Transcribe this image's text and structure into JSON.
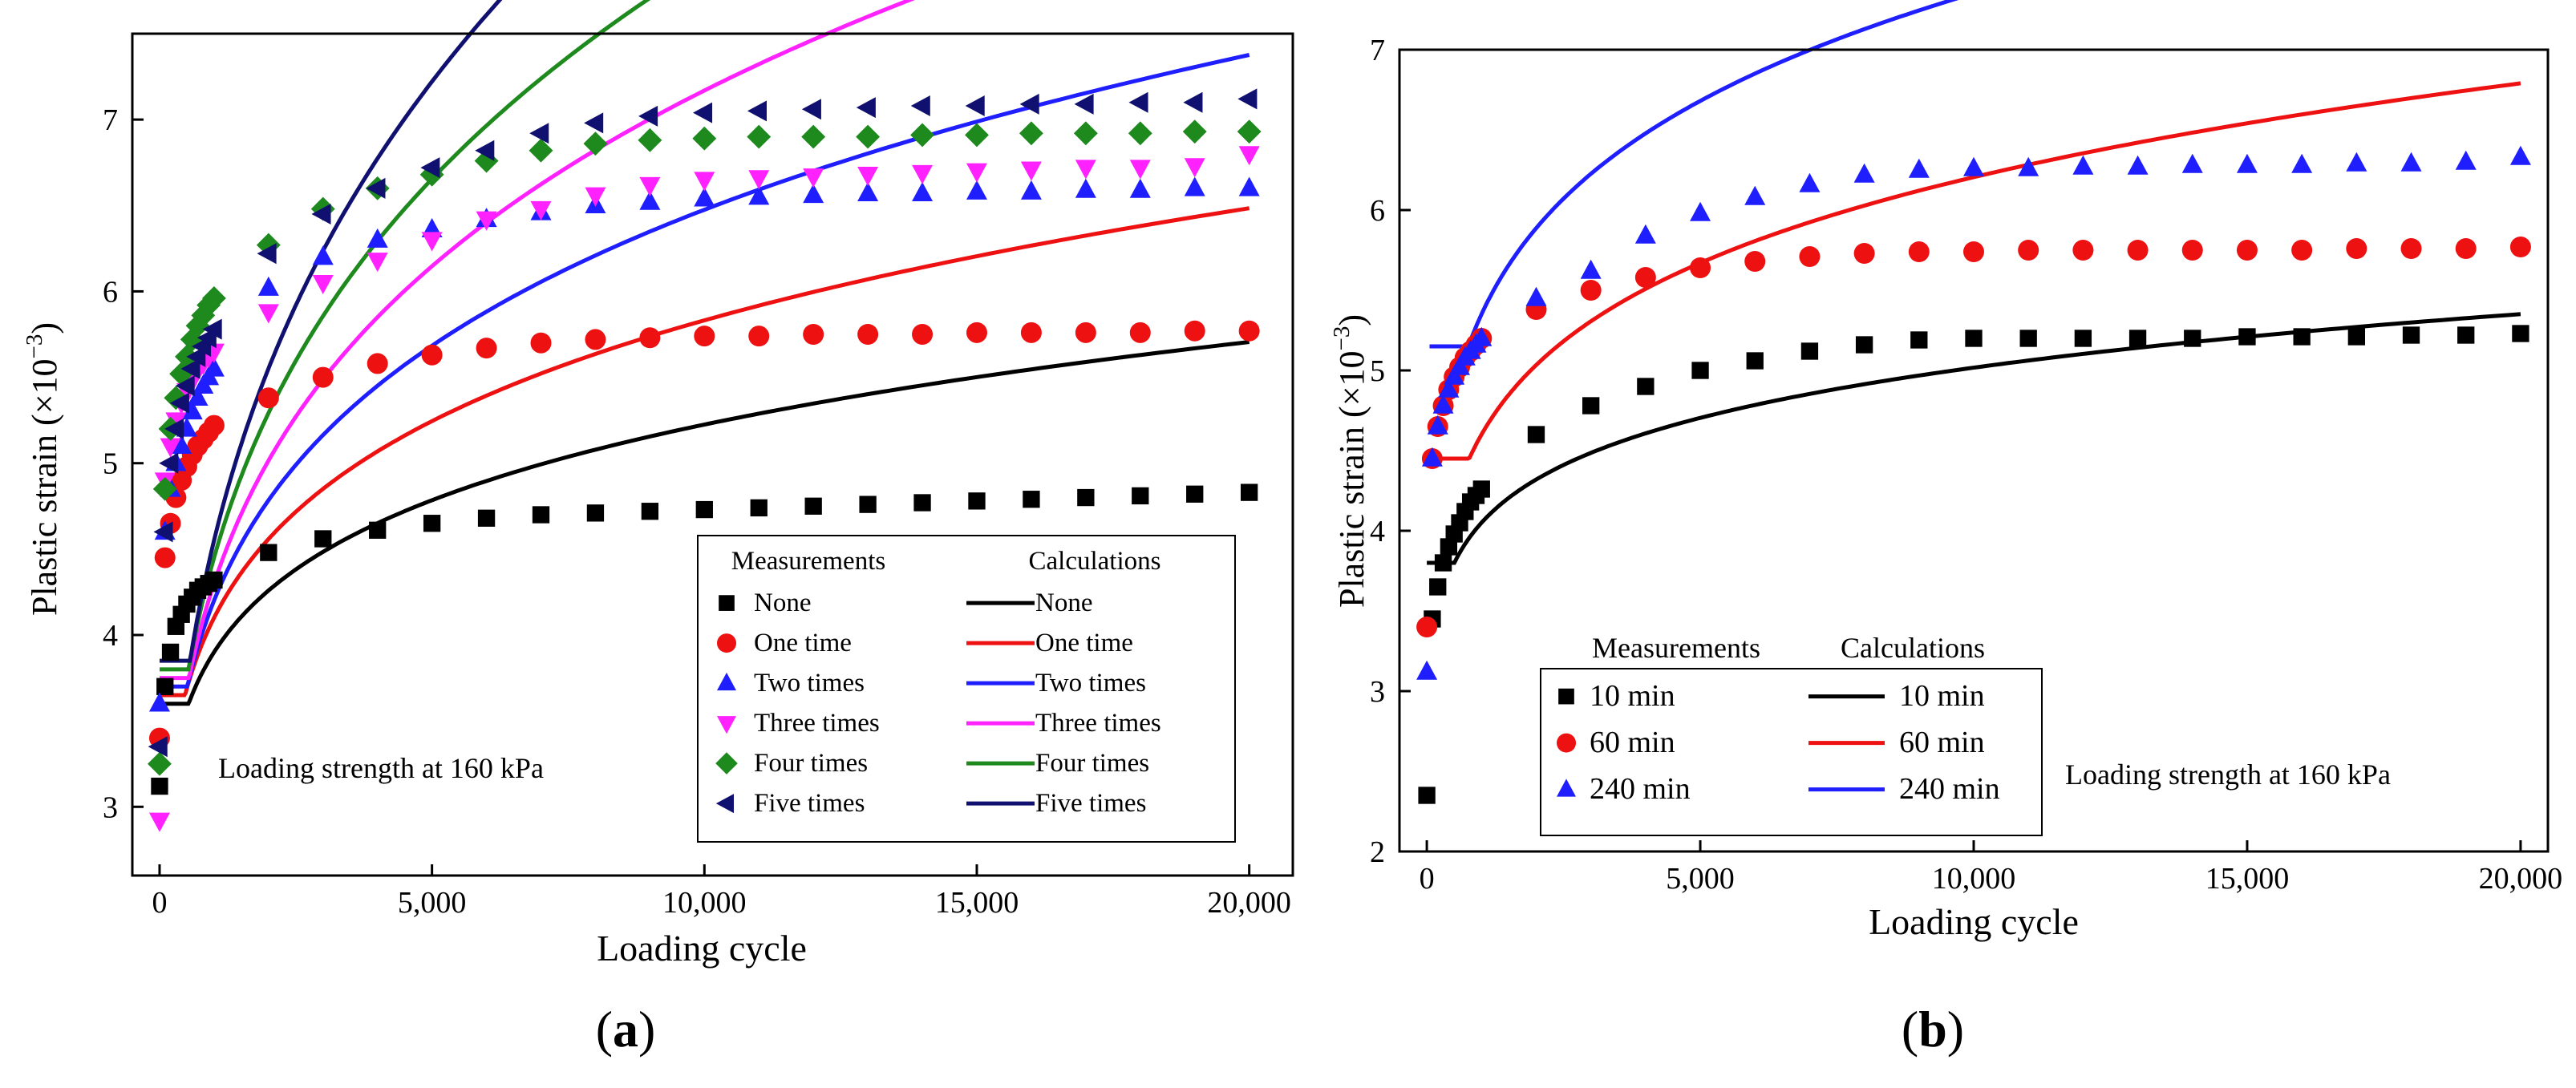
{
  "chart_data": [
    {
      "panel_label": "a",
      "type": "scatter",
      "xlabel": "Loading cycle",
      "ylabel": "Plastic strain (×10",
      "ylabel_exp": "−3",
      "ylabel_close": ")",
      "xlim": [
        -500,
        20800
      ],
      "ylim": [
        2.6,
        7.5
      ],
      "xticks": [
        0,
        5000,
        10000,
        15000,
        20000
      ],
      "xtick_labels": [
        "0",
        "5,000",
        "10,000",
        "15,000",
        "20,000"
      ],
      "yticks": [
        3,
        4,
        5,
        6,
        7
      ],
      "ytick_labels": [
        "3",
        "4",
        "5",
        "6",
        "7"
      ],
      "annotation": "Loading strength at 160 kPa",
      "legend": {
        "placement": "bottom-right",
        "measurements_header": "Measurements",
        "calculations_header": "Calculations"
      },
      "x": [
        0,
        100,
        200,
        300,
        400,
        500,
        600,
        700,
        800,
        900,
        1000,
        2000,
        3000,
        4000,
        5000,
        6000,
        7000,
        8000,
        9000,
        10000,
        11000,
        12000,
        13000,
        14000,
        15000,
        16000,
        17000,
        18000,
        19000,
        20000
      ],
      "series": [
        {
          "name": "None",
          "color": "#000000",
          "marker": "square",
          "measured": [
            3.12,
            3.7,
            3.9,
            4.05,
            4.12,
            4.18,
            4.22,
            4.26,
            4.28,
            4.3,
            4.32,
            4.48,
            4.56,
            4.61,
            4.65,
            4.68,
            4.7,
            4.71,
            4.72,
            4.73,
            4.74,
            4.75,
            4.76,
            4.77,
            4.78,
            4.79,
            4.8,
            4.81,
            4.82,
            4.83
          ],
          "calculated": {
            "start": [
              0,
              3.6
            ],
            "a": 3.9,
            "b": 0.127
          }
        },
        {
          "name": "One time",
          "color": "#ee1111",
          "marker": "circle",
          "measured": [
            3.4,
            4.45,
            4.65,
            4.8,
            4.9,
            4.98,
            5.05,
            5.1,
            5.14,
            5.18,
            5.22,
            5.38,
            5.5,
            5.58,
            5.63,
            5.67,
            5.7,
            5.72,
            5.73,
            5.74,
            5.74,
            5.75,
            5.75,
            5.75,
            5.76,
            5.76,
            5.76,
            5.76,
            5.77,
            5.77
          ],
          "calculated": {
            "start": [
              0,
              3.65
            ],
            "a": 4.1,
            "b": 0.153
          }
        },
        {
          "name": "Two times",
          "color": "#1e1eff",
          "marker": "triangle-up",
          "measured": [
            3.6,
            4.6,
            4.85,
            5.0,
            5.1,
            5.2,
            5.3,
            5.38,
            5.45,
            5.5,
            5.55,
            6.02,
            6.2,
            6.3,
            6.36,
            6.42,
            6.46,
            6.5,
            6.52,
            6.54,
            6.55,
            6.56,
            6.57,
            6.57,
            6.58,
            6.58,
            6.59,
            6.59,
            6.6,
            6.6
          ],
          "calculated": {
            "start": [
              0,
              3.7
            ],
            "a": 4.2,
            "b": 0.188
          }
        },
        {
          "name": "Three times",
          "color": "#ff22ff",
          "marker": "triangle-down",
          "measured": [
            2.92,
            4.9,
            5.1,
            5.25,
            5.35,
            5.42,
            5.48,
            5.54,
            5.58,
            5.62,
            5.65,
            5.88,
            6.05,
            6.18,
            6.3,
            6.42,
            6.48,
            6.56,
            6.62,
            6.65,
            6.66,
            6.67,
            6.68,
            6.69,
            6.7,
            6.71,
            6.72,
            6.72,
            6.73,
            6.8
          ],
          "calculated": {
            "start": [
              0,
              3.75
            ],
            "a": 4.3,
            "b": 0.222
          }
        },
        {
          "name": "Four times",
          "color": "#1e8a1e",
          "marker": "diamond",
          "measured": [
            3.25,
            4.85,
            5.2,
            5.38,
            5.52,
            5.62,
            5.72,
            5.8,
            5.86,
            5.92,
            5.96,
            6.27,
            6.48,
            6.6,
            6.68,
            6.76,
            6.82,
            6.86,
            6.88,
            6.89,
            6.9,
            6.9,
            6.9,
            6.91,
            6.91,
            6.92,
            6.92,
            6.92,
            6.93,
            6.93
          ],
          "calculated": {
            "start": [
              0,
              3.8
            ],
            "a": 4.45,
            "b": 0.25
          }
        },
        {
          "name": "Five times",
          "color": "#101070",
          "marker": "triangle-left",
          "measured": [
            3.35,
            4.6,
            5.0,
            5.2,
            5.35,
            5.45,
            5.55,
            5.62,
            5.68,
            5.73,
            5.78,
            6.22,
            6.45,
            6.6,
            6.72,
            6.82,
            6.92,
            6.98,
            7.02,
            7.04,
            7.05,
            7.06,
            7.07,
            7.08,
            7.08,
            7.09,
            7.09,
            7.1,
            7.1,
            7.12
          ],
          "calculated": {
            "start": [
              0,
              3.85
            ],
            "a": 4.55,
            "b": 0.287
          }
        }
      ]
    },
    {
      "panel_label": "b",
      "type": "scatter",
      "xlabel": "Loading cycle",
      "ylabel": "Plastic strain (×10",
      "ylabel_exp": "−3",
      "ylabel_close": ")",
      "xlim": [
        -500,
        20500
      ],
      "ylim": [
        2,
        7
      ],
      "xticks": [
        0,
        5000,
        10000,
        15000,
        20000
      ],
      "xtick_labels": [
        "0",
        "5,000",
        "10,000",
        "15,000",
        "20,000"
      ],
      "yticks": [
        2,
        3,
        4,
        5,
        6,
        7
      ],
      "ytick_labels": [
        "2",
        "3",
        "4",
        "5",
        "6",
        "7"
      ],
      "annotation": "Loading strength at 160 kPa",
      "legend": {
        "placement": "bottom-left",
        "measurements_header": "Measurements",
        "calculations_header": "Calculations"
      },
      "x": [
        0,
        100,
        200,
        300,
        400,
        500,
        600,
        700,
        800,
        900,
        1000,
        2000,
        3000,
        4000,
        5000,
        6000,
        7000,
        8000,
        9000,
        10000,
        11000,
        12000,
        13000,
        14000,
        15000,
        16000,
        17000,
        18000,
        19000,
        20000
      ],
      "series": [
        {
          "name": "10 min",
          "color": "#000000",
          "marker": "square",
          "measured": [
            2.35,
            3.45,
            3.65,
            3.8,
            3.9,
            3.98,
            4.05,
            4.12,
            4.18,
            4.22,
            4.26,
            4.6,
            4.78,
            4.9,
            5.0,
            5.06,
            5.12,
            5.16,
            5.19,
            5.2,
            5.2,
            5.2,
            5.2,
            5.2,
            5.21,
            5.21,
            5.21,
            5.22,
            5.22,
            5.23
          ],
          "calculated": {
            "start": [
              0,
              3.8
            ],
            "a": 4.05,
            "b": 0.093
          }
        },
        {
          "name": "60 min",
          "color": "#ee1111",
          "marker": "circle",
          "measured": [
            3.4,
            4.45,
            4.65,
            4.78,
            4.88,
            4.96,
            5.02,
            5.08,
            5.12,
            5.16,
            5.2,
            5.38,
            5.5,
            5.58,
            5.64,
            5.68,
            5.71,
            5.73,
            5.74,
            5.74,
            5.75,
            5.75,
            5.75,
            5.75,
            5.75,
            5.75,
            5.76,
            5.76,
            5.76,
            5.77
          ],
          "calculated": {
            "start": [
              0,
              4.45
            ],
            "a": 4.6,
            "b": 0.13
          }
        },
        {
          "name": "240 min",
          "color": "#1e1eff",
          "marker": "triangle-up",
          "measured": [
            3.12,
            4.45,
            4.65,
            4.78,
            4.88,
            4.96,
            5.02,
            5.08,
            5.12,
            5.16,
            5.2,
            5.45,
            5.62,
            5.84,
            5.98,
            6.08,
            6.16,
            6.22,
            6.25,
            6.26,
            6.26,
            6.27,
            6.27,
            6.28,
            6.28,
            6.28,
            6.29,
            6.29,
            6.3,
            6.33
          ],
          "calculated": {
            "start": [
              50,
              5.15
            ],
            "a": 5.35,
            "b": 0.138
          }
        }
      ]
    }
  ]
}
